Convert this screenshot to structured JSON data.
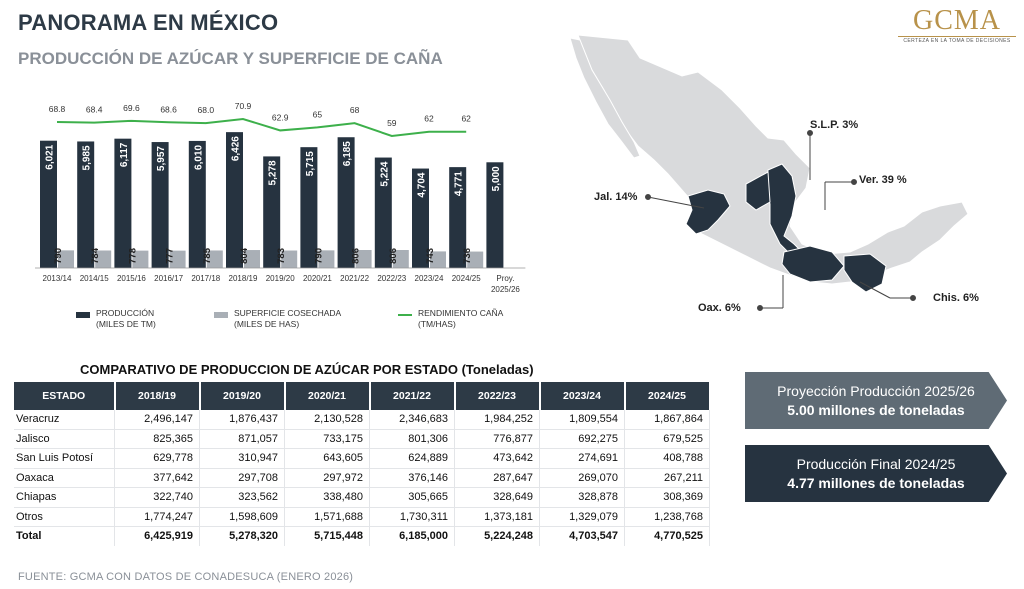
{
  "header": {
    "title": "PANORAMA EN MÉXICO",
    "subtitle": "PRODUCCIÓN DE AZÚCAR Y SUPERFICIE DE CAÑA",
    "logo_text": "GCMA",
    "logo_tagline": "CERTEZA EN LA TOMA DE DECISIONES"
  },
  "chart_data": {
    "type": "bar",
    "categories": [
      "2013/14",
      "2014/15",
      "2015/16",
      "2016/17",
      "2017/18",
      "2018/19",
      "2019/20",
      "2020/21",
      "2021/22",
      "2022/23",
      "2023/24",
      "2024/25",
      "Proy. 2025/26"
    ],
    "series": [
      {
        "name": "PRODUCCIÓN (MILES DE TM)",
        "type": "bar",
        "color": "#263340",
        "values": [
          6021,
          5985,
          6117,
          5957,
          6010,
          6426,
          5278,
          5715,
          6185,
          5224,
          4704,
          4771,
          5000
        ],
        "labels": [
          "6,021",
          "5,985",
          "6,117",
          "5,957",
          "6,010",
          "6,426",
          "5,278",
          "5,715",
          "6,185",
          "5,224",
          "4,704",
          "4,771",
          "5,000"
        ]
      },
      {
        "name": "SUPERFICIE COSECHADA (MILES DE HAS)",
        "type": "bar",
        "color": "#a9afb6",
        "values": [
          790,
          784,
          778,
          777,
          785,
          804,
          783,
          790,
          806,
          806,
          743,
          736,
          null
        ],
        "labels": [
          "790",
          "784",
          "778",
          "777",
          "785",
          "804",
          "783",
          "790",
          "806",
          "806",
          "743",
          "736",
          ""
        ]
      },
      {
        "name": "RENDIMIENTO CAÑA (TM/HAS)",
        "type": "line",
        "color": "#3db04b",
        "values": [
          68.8,
          68.4,
          69.6,
          68.6,
          68.0,
          70.9,
          62.9,
          65,
          68,
          59,
          62,
          62,
          null
        ],
        "labels": [
          "68.8",
          "68.4",
          "69.6",
          "68.6",
          "68.0",
          "70.9",
          "62.9",
          "65",
          "68",
          "59",
          "62",
          "62",
          ""
        ]
      }
    ],
    "legend": [
      {
        "line1": "PRODUCCIÓN",
        "line2": "(MILES DE TM)",
        "color": "#263340"
      },
      {
        "line1": "SUPERFICIE COSECHADA",
        "line2": "(MILES DE HAS)",
        "color": "#a9afb6"
      },
      {
        "line1": "RENDIMIENTO CAÑA",
        "line2": "(TM/HAS)",
        "color": "#3db04b"
      }
    ],
    "legend_position": "bottom",
    "grid": false
  },
  "map": {
    "labels": [
      {
        "key": "slp",
        "text": "S.L.P. 3%"
      },
      {
        "key": "ver",
        "text": "Ver. 39 %"
      },
      {
        "key": "jal",
        "text": "Jal. 14%"
      },
      {
        "key": "oax",
        "text": "Oax. 6%"
      },
      {
        "key": "chis",
        "text": "Chis. 6%"
      }
    ],
    "colors": {
      "land": "#d9dadc",
      "highlight": "#263340"
    }
  },
  "table": {
    "title": "COMPARATIVO DE PRODUCCION DE AZÚCAR POR ESTADO (Toneladas)",
    "headers": [
      "ESTADO",
      "2018/19",
      "2019/20",
      "2020/21",
      "2021/22",
      "2022/23",
      "2023/24",
      "2024/25"
    ],
    "rows": [
      [
        "Veracruz",
        "2,496,147",
        "1,876,437",
        "2,130,528",
        "2,346,683",
        "1,984,252",
        "1,809,554",
        "1,867,864"
      ],
      [
        "Jalisco",
        "825,365",
        "871,057",
        "733,175",
        "801,306",
        "776,877",
        "692,275",
        "679,525"
      ],
      [
        "San Luis Potosí",
        "629,778",
        "310,947",
        "643,605",
        "624,889",
        "473,642",
        "274,691",
        "408,788"
      ],
      [
        "Oaxaca",
        "377,642",
        "297,708",
        "297,972",
        "376,146",
        "287,647",
        "269,070",
        "267,211"
      ],
      [
        "Chiapas",
        "322,740",
        "323,562",
        "338,480",
        "305,665",
        "328,649",
        "328,878",
        "308,369"
      ],
      [
        "Otros",
        "1,774,247",
        "1,598,609",
        "1,571,688",
        "1,730,311",
        "1,373,181",
        "1,329,079",
        "1,238,768"
      ],
      [
        "Total",
        "6,425,919",
        "5,278,320",
        "5,715,448",
        "6,185,000",
        "5,224,248",
        "4,703,547",
        "4,770,525"
      ]
    ]
  },
  "banners": [
    {
      "line1": "Proyección Producción 2025/26",
      "line2": "5.00 millones de toneladas",
      "color": "#5f6b75"
    },
    {
      "line1": "Producción Final 2024/25",
      "line2": "4.77 millones de toneladas",
      "color": "#263340"
    }
  ],
  "footer": "FUENTE: GCMA CON DATOS DE CONADESUCA (ENERO 2026)"
}
